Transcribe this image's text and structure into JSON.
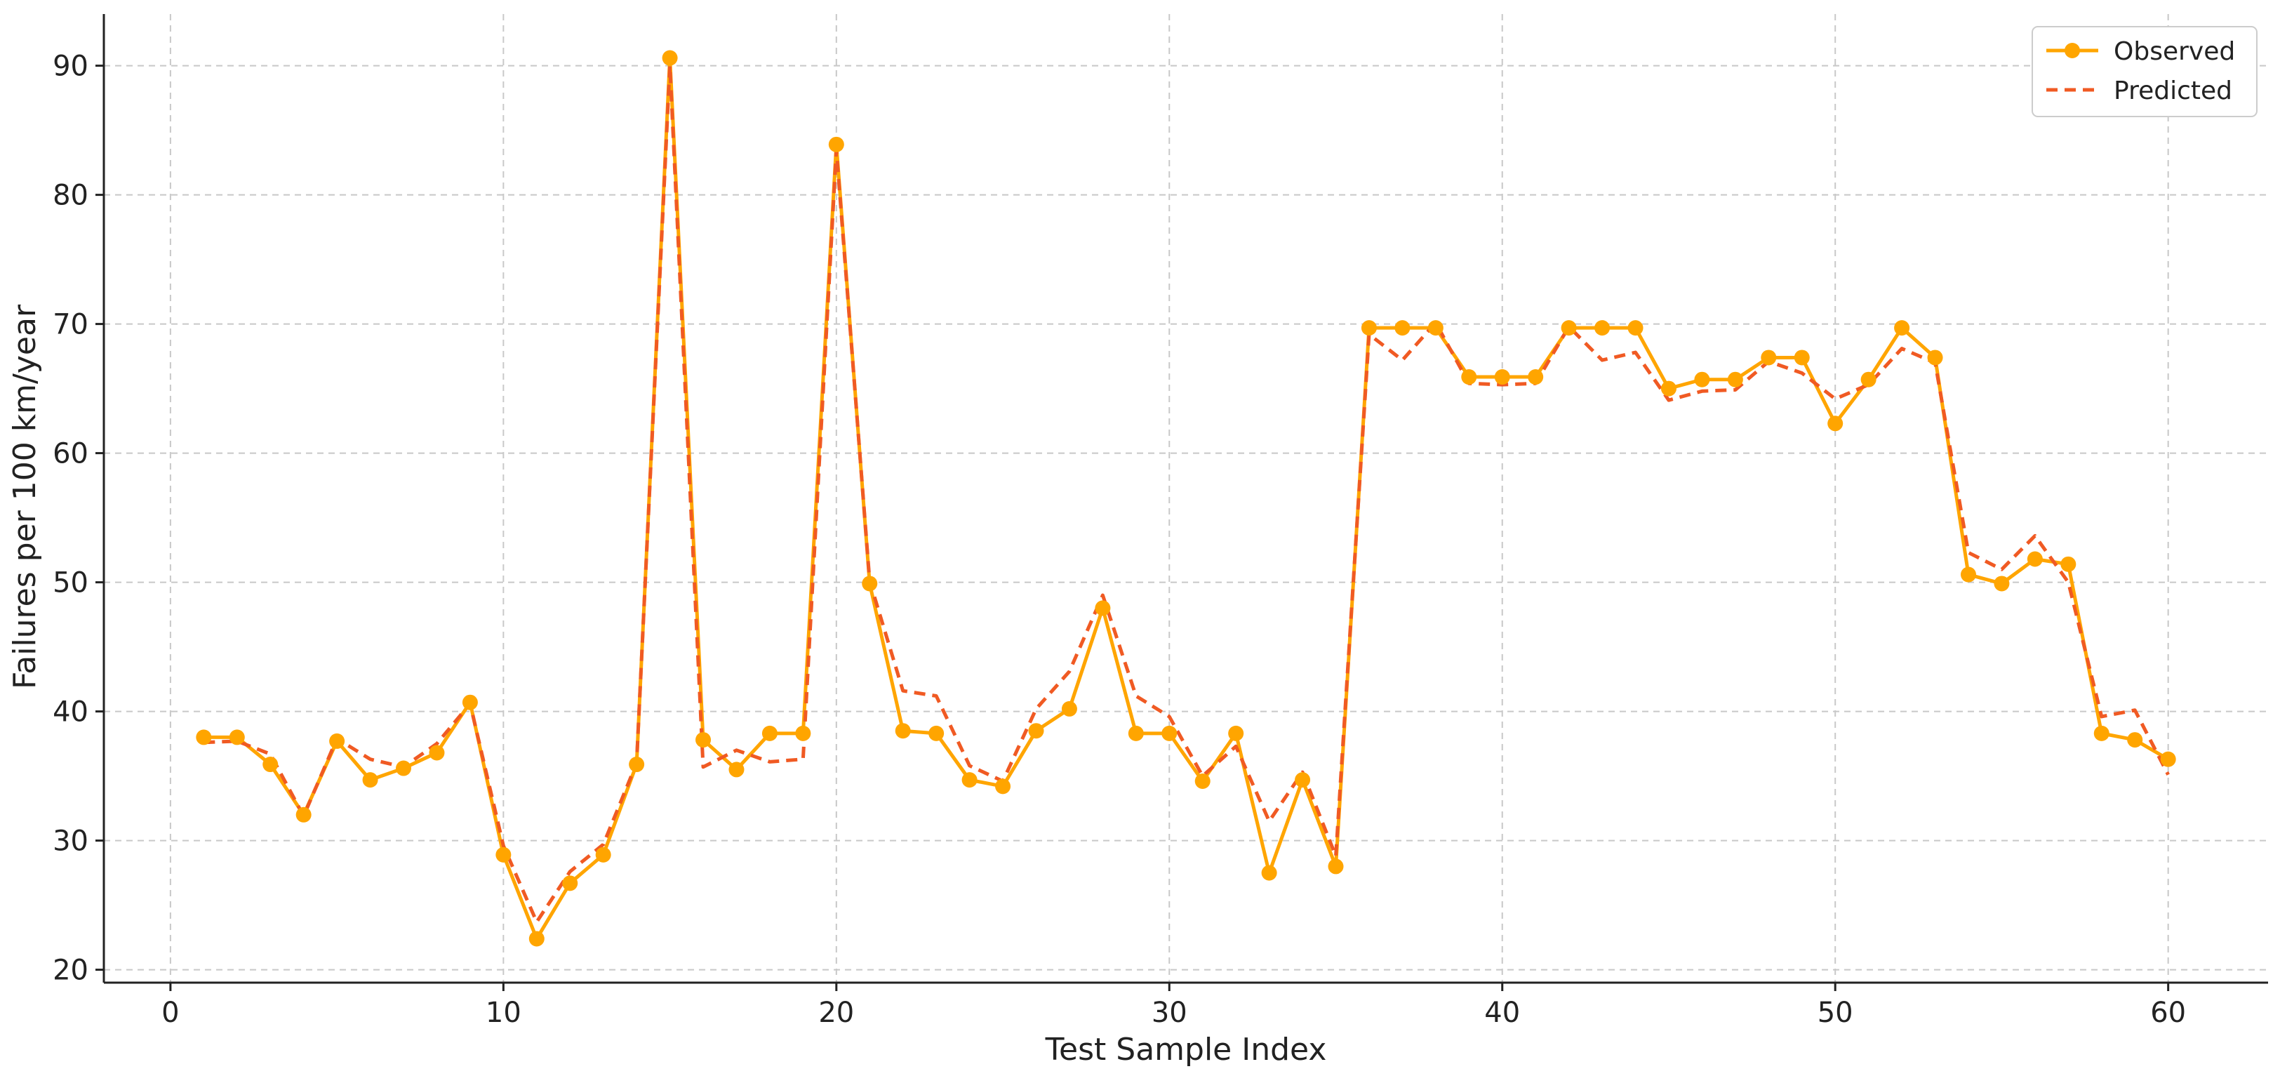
{
  "chart_data": {
    "type": "line",
    "title": "",
    "xlabel": "Test Sample Index",
    "ylabel": "Failures per 100 km/year",
    "xlim": [
      -2,
      63
    ],
    "ylim": [
      19,
      94
    ],
    "x_ticks": [
      0,
      10,
      20,
      30,
      40,
      50,
      60
    ],
    "y_ticks": [
      20,
      30,
      40,
      50,
      60,
      70,
      80,
      90
    ],
    "grid": true,
    "legend_position": "top-right",
    "x": [
      1,
      2,
      3,
      4,
      5,
      6,
      7,
      8,
      9,
      10,
      11,
      12,
      13,
      14,
      15,
      16,
      17,
      18,
      19,
      20,
      21,
      22,
      23,
      24,
      25,
      26,
      27,
      28,
      29,
      30,
      31,
      32,
      33,
      34,
      35,
      36,
      37,
      38,
      39,
      40,
      41,
      42,
      43,
      44,
      45,
      46,
      47,
      48,
      49,
      50,
      51,
      52,
      53,
      54,
      55,
      56,
      57,
      58,
      59,
      60
    ],
    "series": [
      {
        "name": "Observed",
        "color": "#FFA500",
        "style": "solid-markers",
        "values": [
          38.0,
          38.0,
          35.9,
          32.0,
          37.7,
          34.7,
          35.6,
          36.8,
          40.7,
          28.9,
          22.4,
          26.7,
          28.9,
          35.9,
          90.6,
          37.8,
          35.5,
          38.3,
          38.3,
          83.9,
          49.9,
          38.5,
          38.3,
          34.7,
          34.2,
          38.5,
          40.2,
          48.0,
          38.3,
          38.3,
          34.6,
          38.3,
          27.5,
          34.7,
          28.0,
          69.7,
          69.7,
          69.7,
          65.9,
          65.9,
          65.9,
          69.7,
          69.7,
          69.7,
          65.0,
          65.7,
          65.7,
          67.4,
          67.4,
          62.3,
          65.7,
          69.7,
          67.4,
          50.6,
          49.9,
          51.8,
          51.4,
          38.3,
          37.8,
          36.3
        ]
      },
      {
        "name": "Predicted",
        "color": "#F05A23",
        "style": "dashed",
        "values": [
          37.6,
          37.7,
          36.7,
          31.9,
          37.9,
          36.3,
          35.7,
          37.5,
          40.6,
          29.6,
          23.7,
          27.6,
          29.7,
          36.0,
          90.0,
          35.7,
          37.0,
          36.1,
          36.3,
          83.5,
          50.1,
          41.6,
          41.2,
          35.8,
          34.6,
          40.2,
          43.1,
          49.0,
          41.2,
          39.6,
          35.0,
          37.3,
          31.5,
          35.3,
          28.8,
          69.2,
          67.2,
          70.1,
          65.4,
          65.3,
          65.4,
          69.8,
          67.2,
          67.8,
          64.1,
          64.8,
          64.9,
          67.1,
          66.2,
          64.2,
          65.3,
          68.1,
          67.0,
          52.3,
          51.0,
          53.6,
          50.0,
          39.6,
          40.1,
          35.1
        ]
      }
    ]
  }
}
